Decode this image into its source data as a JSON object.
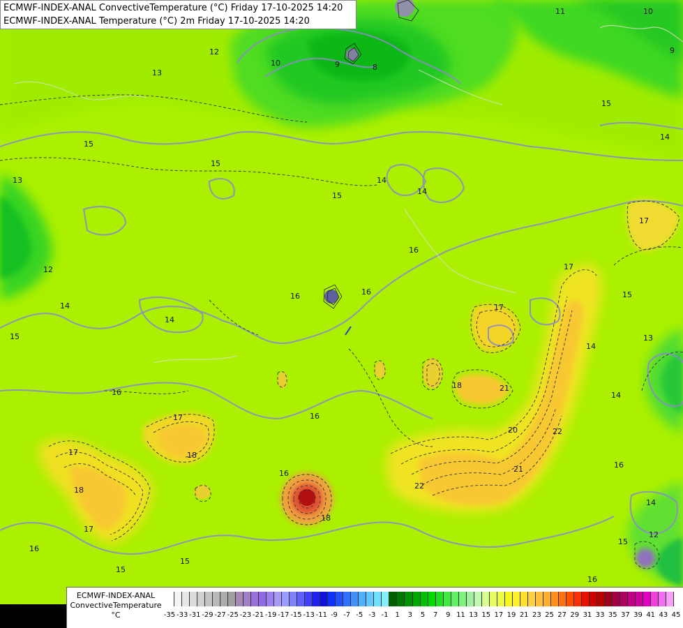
{
  "title": {
    "line1": "ECMWF-INDEX-ANAL ConvectiveTemperature (°C) Friday 17-10-2025 14:20",
    "line2": "ECMWF-INDEX-ANAL Temperature (°C) 2m Friday 17-10-2025 14:20"
  },
  "legend": {
    "line1": "ECMWF-INDEX-ANAL",
    "line2": "ConvectiveTemperature",
    "line3": "°C",
    "ticks": [
      "-35",
      "-33",
      "-31",
      "-29",
      "-27",
      "-25",
      "-23",
      "-21",
      "-19",
      "-17",
      "-15",
      "-13",
      "-11",
      "-9",
      "-7",
      "-5",
      "-3",
      "-1",
      "1",
      "3",
      "5",
      "7",
      "9",
      "11",
      "13",
      "15",
      "17",
      "19",
      "21",
      "23",
      "25",
      "27",
      "29",
      "31",
      "33",
      "35",
      "37",
      "39",
      "41",
      "43",
      "45"
    ],
    "colors": [
      "#ffffff",
      "#f4f4f4",
      "#e8e8e8",
      "#dcdcdc",
      "#d0d0d0",
      "#c4c4c4",
      "#b8b8b8",
      "#acacac",
      "#a0a0a0",
      "#a48ab4",
      "#a080c8",
      "#9870d8",
      "#9068e8",
      "#9c80f0",
      "#a898f8",
      "#9a9aff",
      "#8080ff",
      "#6060ff",
      "#4040ff",
      "#2020f0",
      "#1010e0",
      "#1030ff",
      "#2050ff",
      "#3070ff",
      "#4090ff",
      "#50b0ff",
      "#60c8ff",
      "#70e0ff",
      "#80f0ff",
      "#006000",
      "#007800",
      "#009000",
      "#00a800",
      "#00c000",
      "#00d800",
      "#20e020",
      "#40e840",
      "#60f060",
      "#80f080",
      "#a0f0a0",
      "#c0f8b0",
      "#d8fc90",
      "#e8fc60",
      "#f0fc40",
      "#f8f820",
      "#fff020",
      "#ffe030",
      "#ffd040",
      "#ffc040",
      "#ffb030",
      "#ff9020",
      "#ff7010",
      "#ff5000",
      "#ff3000",
      "#e81000",
      "#d00000",
      "#b80000",
      "#a00020",
      "#a00040",
      "#b00060",
      "#c00080",
      "#d000a0",
      "#e000c0",
      "#f040e0",
      "#f070f0",
      "#f8a0f8"
    ]
  },
  "contour_labels": [
    {
      "text": "10"
    },
    {
      "text": "9"
    },
    {
      "text": "8"
    },
    {
      "text": "11"
    },
    {
      "text": "10"
    },
    {
      "text": "9"
    },
    {
      "text": "13"
    },
    {
      "text": "12"
    },
    {
      "text": "15"
    },
    {
      "text": "15"
    },
    {
      "text": "15"
    },
    {
      "text": "14"
    },
    {
      "text": "14"
    },
    {
      "text": "15"
    },
    {
      "text": "14"
    },
    {
      "text": "13"
    },
    {
      "text": "12"
    },
    {
      "text": "14"
    },
    {
      "text": "14"
    },
    {
      "text": "16"
    },
    {
      "text": "16"
    },
    {
      "text": "16"
    },
    {
      "text": "16"
    },
    {
      "text": "17"
    },
    {
      "text": "18"
    },
    {
      "text": "17"
    },
    {
      "text": "18"
    },
    {
      "text": "16"
    },
    {
      "text": "17"
    },
    {
      "text": "15"
    },
    {
      "text": "15"
    },
    {
      "text": "16"
    },
    {
      "text": "18"
    },
    {
      "text": "22"
    },
    {
      "text": "21"
    },
    {
      "text": "22"
    },
    {
      "text": "20"
    },
    {
      "text": "21"
    },
    {
      "text": "17"
    },
    {
      "text": "18"
    },
    {
      "text": "17"
    },
    {
      "text": "15"
    },
    {
      "text": "13"
    },
    {
      "text": "14"
    },
    {
      "text": "16"
    },
    {
      "text": "14"
    },
    {
      "text": "12"
    },
    {
      "text": "15"
    },
    {
      "text": "16"
    },
    {
      "text": "17"
    },
    {
      "text": "15"
    },
    {
      "text": "14"
    },
    {
      "text": "16"
    }
  ]
}
